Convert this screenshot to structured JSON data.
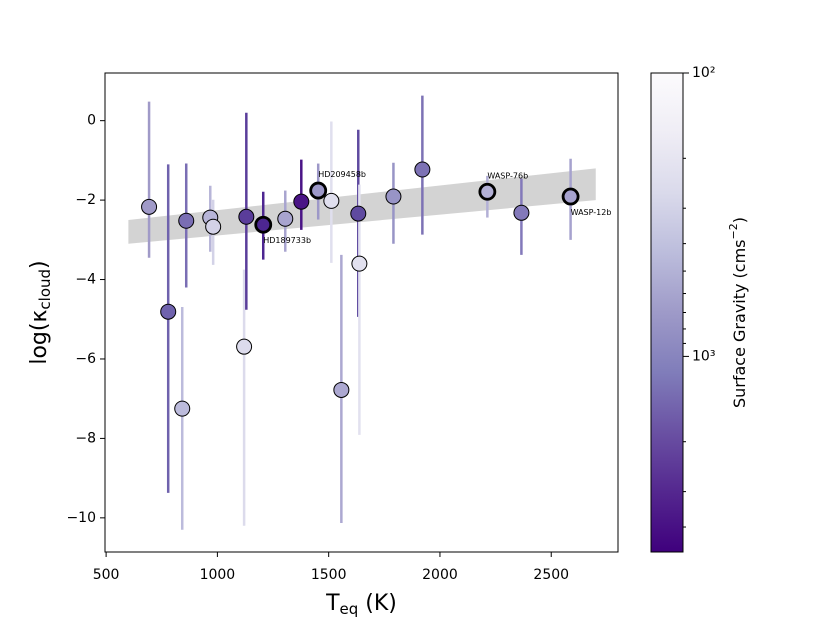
{
  "chart_data": {
    "type": "scatter",
    "x": [
      693,
      779,
      842,
      860,
      968,
      981,
      1120,
      1130,
      1206,
      1305,
      1377,
      1453,
      1512,
      1557,
      1633,
      1638,
      1791,
      1921,
      2213,
      2366,
      2587
    ],
    "values": [
      -2.17,
      -4.81,
      -7.25,
      -2.52,
      -2.44,
      -2.67,
      -5.69,
      -2.42,
      -2.62,
      -2.47,
      -2.04,
      -1.76,
      -2.02,
      -6.78,
      -2.34,
      -3.6,
      -1.91,
      -1.23,
      -1.79,
      -2.32,
      -1.91
    ],
    "err_low": [
      1.28,
      4.56,
      3.05,
      1.68,
      0.86,
      0.96,
      4.51,
      2.34,
      0.88,
      0.83,
      0.71,
      0.73,
      1.56,
      3.35,
      2.6,
      4.31,
      1.19,
      1.64,
      0.65,
      1.06,
      1.09
    ],
    "err_high": [
      2.65,
      3.71,
      2.56,
      1.44,
      0.8,
      0.68,
      1.94,
      2.62,
      0.83,
      0.71,
      1.06,
      0.68,
      2.0,
      3.4,
      2.11,
      1.99,
      0.85,
      1.86,
      0.4,
      0.86,
      0.95
    ],
    "colors": [
      "#a09ac8",
      "#6f62ad",
      "#bcbbdc",
      "#7a6eb4",
      "#b7b5d8",
      "#d3d2e7",
      "#dcdbec",
      "#5a3d9a",
      "#4d2691",
      "#a8a4cf",
      "#4a1486",
      "#9d98c8",
      "#e0dfee",
      "#aca8d1",
      "#5f4aa0",
      "#e2e1ef",
      "#9894c6",
      "#7d72b5",
      "#b3b0d6",
      "#8379ba",
      "#a6a2ce"
    ],
    "names": [
      null,
      null,
      null,
      null,
      null,
      null,
      null,
      null,
      "HD189733b",
      null,
      null,
      "HD209458b",
      null,
      null,
      null,
      null,
      null,
      null,
      "WASP-76b",
      null,
      "WASP-12b"
    ],
    "band_x": [
      600,
      2700
    ],
    "band_upper": [
      -2.5,
      -1.2
    ],
    "band_lower": [
      -3.1,
      -2.0
    ],
    "band_color": "#c8c8c8",
    "xlabel_parts": [
      "T",
      "eq",
      " (K)"
    ],
    "ylabel_parts": [
      "log(κ",
      "cloud",
      ")"
    ],
    "xlim": [
      495,
      2800
    ],
    "ylim": [
      -10.86,
      1.2
    ],
    "xticks": [
      500,
      1000,
      1500,
      2000,
      2500
    ],
    "yticks": [
      0,
      {
        "value": -2,
        "label": "−2"
      },
      {
        "value": -4,
        "label": "−4"
      },
      {
        "value": -6,
        "label": "−6"
      },
      {
        "value": -8,
        "label": "−8"
      },
      {
        "value": -10,
        "label": "−10"
      }
    ],
    "colorbar": {
      "label_parts": [
        "Surface Gravity (cms",
        "−2",
        ")"
      ],
      "clim": [
        100,
        4900
      ],
      "log": true,
      "ticks": [
        {
          "value": 100,
          "label": "10²"
        },
        {
          "value": 1000,
          "label": "10³"
        }
      ],
      "minor_ticks": [
        200,
        300,
        400,
        500,
        600,
        700,
        800,
        900,
        2000,
        3000,
        4000
      ],
      "cmap": [
        "#fcfbfd",
        "#efedf5",
        "#dadaeb",
        "#bcbddc",
        "#9e9ac8",
        "#807dba",
        "#6a51a3",
        "#54278f",
        "#3f007d"
      ]
    }
  }
}
